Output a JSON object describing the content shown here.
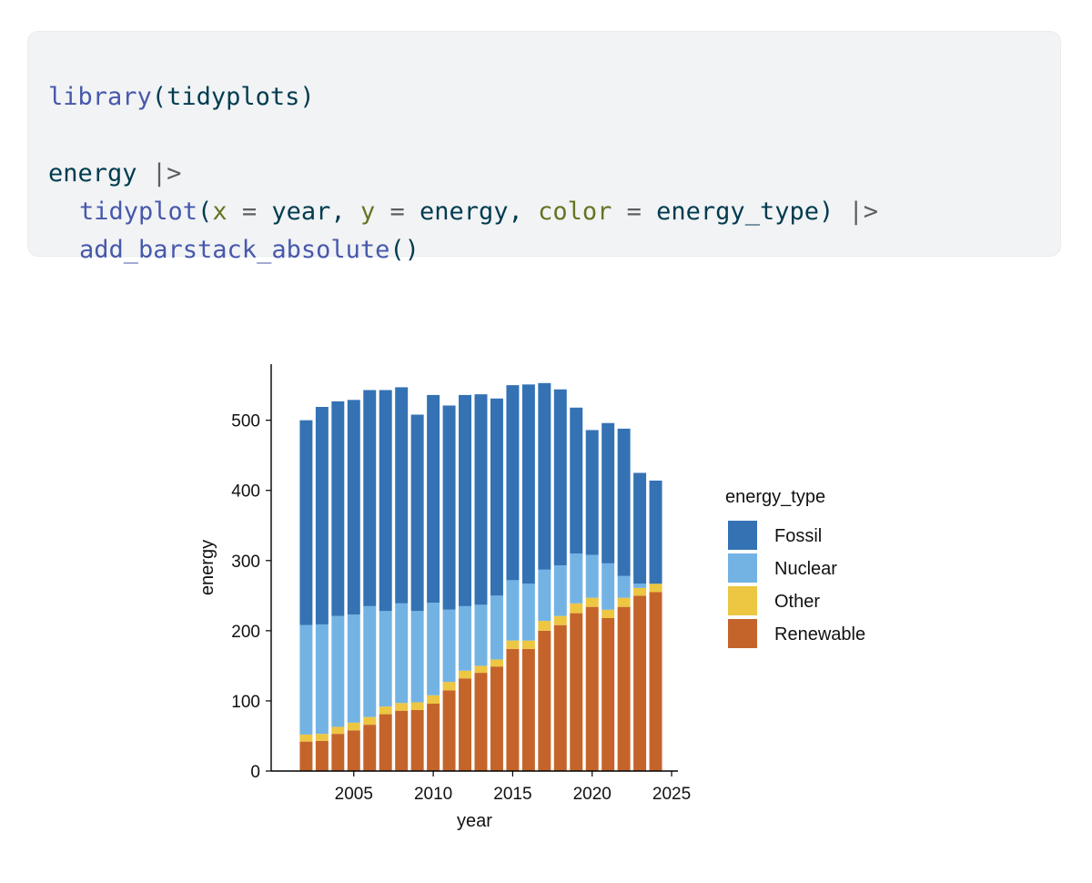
{
  "code": {
    "line1": {
      "fn": "library",
      "open": "(",
      "arg": "tidyplots",
      "close": ")"
    },
    "line3": {
      "var": "energy",
      "pipe": "|>"
    },
    "line4": {
      "fn": "tidyplot",
      "open": "(",
      "a1": "x",
      "eq": "=",
      "v1": "year",
      "comma": ",",
      "a2": "y",
      "v2": "energy",
      "a3": "color",
      "v3": "energy_type",
      "close": ")",
      "pipe": "|>"
    },
    "line5": {
      "fn": "add_barstack_absolute",
      "parens": "()"
    }
  },
  "chart_data": {
    "type": "bar",
    "stacked": true,
    "xlabel": "year",
    "ylabel": "energy",
    "legend_title": "energy_type",
    "legend_position": "right",
    "x": [
      2002,
      2003,
      2004,
      2005,
      2006,
      2007,
      2008,
      2009,
      2010,
      2011,
      2012,
      2013,
      2014,
      2015,
      2016,
      2017,
      2018,
      2019,
      2020,
      2021,
      2022,
      2023,
      2024
    ],
    "xlim": [
      1999.8,
      2025.4
    ],
    "ylim": [
      0,
      580
    ],
    "x_ticks": [
      2005,
      2010,
      2015,
      2020,
      2025
    ],
    "y_ticks": [
      0,
      100,
      200,
      300,
      400,
      500
    ],
    "series": [
      {
        "name": "Renewable",
        "color": "#c5642a",
        "values": [
          42,
          43,
          53,
          58,
          66,
          81,
          86,
          87,
          96,
          115,
          132,
          140,
          149,
          174,
          174,
          200,
          208,
          225,
          234,
          218,
          234,
          250,
          255
        ]
      },
      {
        "name": "Other",
        "color": "#edc642",
        "values": [
          10,
          10,
          10,
          11,
          11,
          11,
          11,
          11,
          12,
          12,
          11,
          10,
          10,
          12,
          12,
          14,
          13,
          14,
          13,
          12,
          13,
          11,
          12
        ]
      },
      {
        "name": "Nuclear",
        "color": "#73b3e4",
        "values": [
          156,
          156,
          158,
          154,
          158,
          136,
          142,
          130,
          132,
          103,
          92,
          87,
          91,
          86,
          81,
          73,
          72,
          71,
          61,
          66,
          31,
          6,
          0
        ]
      },
      {
        "name": "Fossil",
        "color": "#3472b4",
        "values": [
          292,
          310,
          306,
          306,
          308,
          315,
          308,
          280,
          296,
          291,
          301,
          300,
          281,
          278,
          284,
          266,
          251,
          208,
          178,
          200,
          210,
          158,
          147
        ]
      }
    ],
    "legend_order": [
      "Fossil",
      "Nuclear",
      "Other",
      "Renewable"
    ],
    "axis_color": "#000000",
    "tick_label_color": "#111111"
  }
}
